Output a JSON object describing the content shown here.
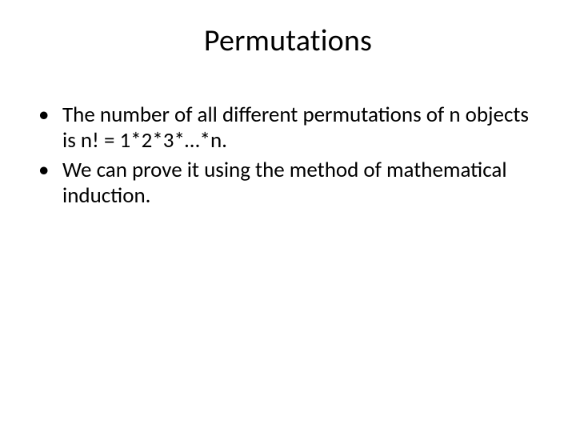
{
  "slide": {
    "title": "Permutations",
    "bullets": [
      "The number of all different permutations of n objects is n! = 1*2*3*…*n.",
      "We can prove it using the method of mathematical induction."
    ],
    "style": {
      "background_color": "#ffffff",
      "text_color": "#000000",
      "title_fontsize": 38,
      "body_fontsize": 27,
      "font_family": "Calibri"
    }
  }
}
